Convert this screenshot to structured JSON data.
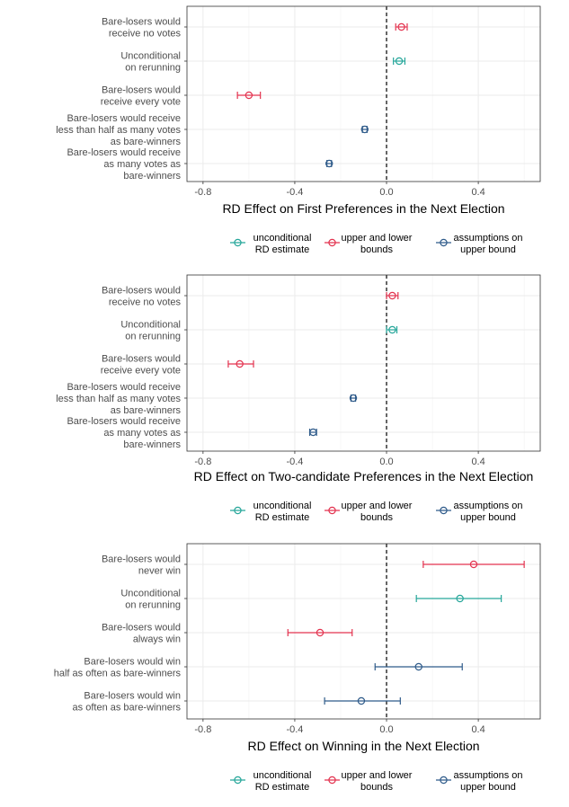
{
  "colors": {
    "unconditional": "#26a69a",
    "bounds": "#e3334f",
    "assumptions": "#2f5b8a"
  },
  "legend": [
    {
      "key": "unconditional",
      "line1": "unconditional",
      "line2": "RD estimate"
    },
    {
      "key": "bounds",
      "line1": "upper and lower",
      "line2": "bounds"
    },
    {
      "key": "assumptions",
      "line1": "assumptions on",
      "line2": "upper bound"
    }
  ],
  "chart_data": [
    {
      "type": "scatter",
      "title": "",
      "xlabel": "RD Effect on First Preferences in the Next Election",
      "xlim": [
        -0.87,
        0.67
      ],
      "xticks": [
        -0.8,
        -0.4,
        0.0,
        0.4
      ],
      "xtick_labels": [
        "-0.8",
        "-0.4",
        "0.0",
        "0.4"
      ],
      "grid": true,
      "legend_position": "bottom",
      "rows": [
        {
          "label": [
            "Bare-losers would",
            "receive no votes"
          ],
          "series": "bounds",
          "estimate": 0.065,
          "lower": 0.04,
          "upper": 0.09
        },
        {
          "label": [
            "Unconditional",
            "on rerunning"
          ],
          "series": "unconditional",
          "estimate": 0.055,
          "lower": 0.03,
          "upper": 0.08
        },
        {
          "label": [
            "Bare-losers would",
            "receive every vote"
          ],
          "series": "bounds",
          "estimate": -0.6,
          "lower": -0.65,
          "upper": -0.55
        },
        {
          "label": [
            "Bare-losers would receive",
            "less than half as many votes",
            "as bare-winners"
          ],
          "series": "assumptions",
          "estimate": -0.095,
          "lower": -0.105,
          "upper": -0.085
        },
        {
          "label": [
            "Bare-losers would receive",
            "as many votes as",
            "bare-winners"
          ],
          "series": "assumptions",
          "estimate": -0.25,
          "lower": -0.26,
          "upper": -0.24
        }
      ]
    },
    {
      "type": "scatter",
      "title": "",
      "xlabel": "RD Effect on Two-candidate Preferences in the Next Election",
      "xlim": [
        -0.87,
        0.67
      ],
      "xticks": [
        -0.8,
        -0.4,
        0.0,
        0.4
      ],
      "xtick_labels": [
        "-0.8",
        "-0.4",
        "0.0",
        "0.4"
      ],
      "grid": true,
      "legend_position": "bottom",
      "rows": [
        {
          "label": [
            "Bare-losers would",
            "receive no votes"
          ],
          "series": "bounds",
          "estimate": 0.025,
          "lower": 0.0,
          "upper": 0.05
        },
        {
          "label": [
            "Unconditional",
            "on rerunning"
          ],
          "series": "unconditional",
          "estimate": 0.025,
          "lower": 0.0,
          "upper": 0.045
        },
        {
          "label": [
            "Bare-losers would",
            "receive every vote"
          ],
          "series": "bounds",
          "estimate": -0.64,
          "lower": -0.69,
          "upper": -0.58
        },
        {
          "label": [
            "Bare-losers would receive",
            "less than half as many votes",
            "as bare-winners"
          ],
          "series": "assumptions",
          "estimate": -0.145,
          "lower": -0.155,
          "upper": -0.135
        },
        {
          "label": [
            "Bare-losers would receive",
            "as many votes as",
            "bare-winners"
          ],
          "series": "assumptions",
          "estimate": -0.32,
          "lower": -0.335,
          "upper": -0.305
        }
      ]
    },
    {
      "type": "scatter",
      "title": "",
      "xlabel": "RD Effect on Winning in the Next Election",
      "xlim": [
        -0.87,
        0.67
      ],
      "xticks": [
        -0.8,
        -0.4,
        0.0,
        0.4
      ],
      "xtick_labels": [
        "-0.8",
        "-0.4",
        "0.0",
        "0.4"
      ],
      "grid": true,
      "legend_position": "bottom",
      "rows": [
        {
          "label": [
            "Bare-losers would",
            "never win"
          ],
          "series": "bounds",
          "estimate": 0.38,
          "lower": 0.16,
          "upper": 0.6
        },
        {
          "label": [
            "Unconditional",
            "on rerunning"
          ],
          "series": "unconditional",
          "estimate": 0.32,
          "lower": 0.13,
          "upper": 0.5
        },
        {
          "label": [
            "Bare-losers would",
            "always win"
          ],
          "series": "bounds",
          "estimate": -0.29,
          "lower": -0.43,
          "upper": -0.15
        },
        {
          "label": [
            "Bare-losers would win",
            "half as often as bare-winners"
          ],
          "series": "assumptions",
          "estimate": 0.14,
          "lower": -0.05,
          "upper": 0.33
        },
        {
          "label": [
            "Bare-losers would win",
            "as often as bare-winners"
          ],
          "series": "assumptions",
          "estimate": -0.11,
          "lower": -0.27,
          "upper": 0.06
        }
      ]
    }
  ]
}
